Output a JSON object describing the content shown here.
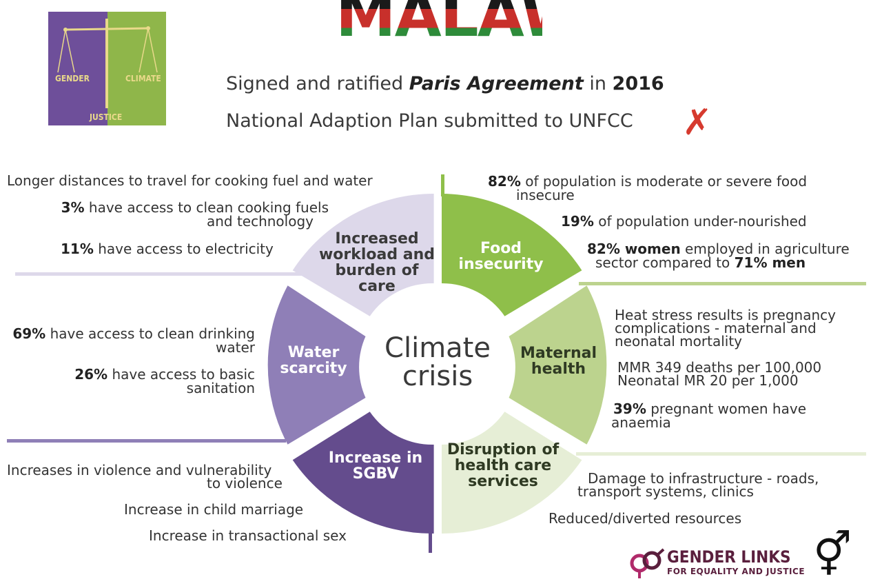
{
  "logo": {
    "left": "GENDER",
    "right": "CLIMATE",
    "bottom": "JUSTICE"
  },
  "country": "MALAWI",
  "headline1": {
    "pre": "Signed and ratified ",
    "em": "Paris Agreement",
    "mid": " in ",
    "year": "2016"
  },
  "headline2": "National Adaption Plan submitted to UNFCC",
  "cross_mark": "✗",
  "center": {
    "line1": "Climate",
    "line2": "crisis"
  },
  "segments": {
    "workload": "Increased workload and burden of care",
    "food": "Food insecurity",
    "maternal": "Maternal health",
    "health": "Disruption of health care services",
    "sgbv": "Increase in SGBV",
    "water": "Water scarcity"
  },
  "workload_facts": {
    "f1": "Longer distances to travel for cooking fuel and water",
    "f2_num": "3%",
    "f2_a": " have access to clean cooking fuels",
    "f2_b": "and technology",
    "f3_num": "11%",
    "f3": " have access to electricity"
  },
  "food_facts": {
    "f1_num": "82%",
    "f1_a": " of population is moderate or severe food",
    "f1_b": "insecure",
    "f2_num": "19%",
    "f2": " of population under-nourished",
    "f3_num": "82% women",
    "f3_a": " employed in agriculture",
    "f3_b": "sector compared to ",
    "f3_num2": "71% men"
  },
  "maternal_facts": {
    "f1_a": "Heat stress results is pregnancy",
    "f1_b": "complications - maternal and",
    "f1_c": "neonatal mortality",
    "f2_a": "MMR 349 deaths per 100,000",
    "f2_b": "Neonatal MR 20 per 1,000",
    "f3_num": "39%",
    "f3_a": " pregnant women have",
    "f3_b": "anaemia"
  },
  "water_facts": {
    "f1_num": "69%",
    "f1_a": " have access to clean drinking",
    "f1_b": "water",
    "f2_num": "26%",
    "f2_a": " have access to basic",
    "f2_b": "sanitation"
  },
  "sgbv_facts": {
    "f1_a": "Increases in violence and vulnerability",
    "f1_b": "to violence",
    "f2": "Increase in child marriage",
    "f3": "Increase in transactional sex"
  },
  "health_facts": {
    "f1_a": "Damage to infrastructure - roads,",
    "f1_b": "transport systems, clinics",
    "f2": "Reduced/diverted resources"
  },
  "footer": {
    "brand": "GENDER LINKS",
    "brand_sub": "FOR EQUALITY AND JUSTICE",
    "symbol": "⚥"
  },
  "colors": {
    "workload": "#ddd8ea",
    "food": "#8fbf4a",
    "maternal": "#bcd38e",
    "health": "#e6eed6",
    "sgbv": "#644c8d",
    "water": "#8f7fb7"
  }
}
